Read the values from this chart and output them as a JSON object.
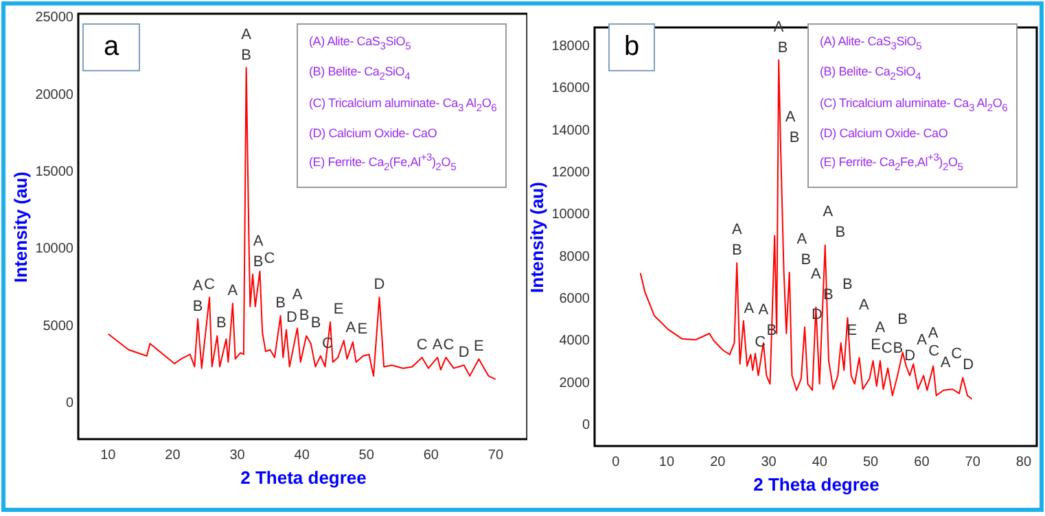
{
  "chart_data": [
    {
      "type": "line",
      "xlabel": "2 Theta degree",
      "ylabel": "Intensity (au)",
      "xlim": [
        5.5,
        75
      ],
      "ylim": [
        -2400,
        25200
      ],
      "xticks": [
        10,
        20,
        30,
        40,
        50,
        60,
        70
      ],
      "yticks": [
        0,
        5000,
        10000,
        15000,
        20000,
        25000
      ],
      "series": [
        {
          "color": "#ff0000",
          "x": [
            10.2,
            13.3,
            16.1,
            16.6,
            20.4,
            21.4,
            22.8,
            23.5,
            24.0,
            24.6,
            25.8,
            26.2,
            27.0,
            27.4,
            28.4,
            28.7,
            29.4,
            29.8,
            30.6,
            31.1,
            31.5,
            31.9,
            32.1,
            32.5,
            32.9,
            33.6,
            34.0,
            34.5,
            35.2,
            35.9,
            36.8,
            37.2,
            37.7,
            38.2,
            39.4,
            39.9,
            40.8,
            41.5,
            42.2,
            43.0,
            43.7,
            44.5,
            44.9,
            45.7,
            46.6,
            47.1,
            48.0,
            48.5,
            49.6,
            50.5,
            51.2,
            52.1,
            52.8,
            54.0,
            55.8,
            57.2,
            58.7,
            59.7,
            61.1,
            61.6,
            62.4,
            63.6,
            65.2,
            66.1,
            67.5,
            69.0,
            70.0
          ],
          "values": [
            4400,
            3400,
            3000,
            3800,
            2500,
            2800,
            3100,
            2300,
            5400,
            2200,
            6800,
            2300,
            4300,
            2300,
            4100,
            2600,
            6400,
            2800,
            3200,
            3100,
            21700,
            10700,
            6200,
            8300,
            6200,
            8500,
            4500,
            3300,
            3400,
            2900,
            5600,
            2900,
            4700,
            2300,
            4800,
            2600,
            4300,
            3800,
            2300,
            3000,
            2300,
            5200,
            2600,
            2900,
            4000,
            2800,
            3900,
            2600,
            3000,
            3100,
            1700,
            6800,
            2300,
            2400,
            2200,
            2300,
            2900,
            2200,
            2900,
            2100,
            2900,
            2200,
            2400,
            1700,
            2800,
            1700,
            1500
          ]
        }
      ],
      "annotations": [
        "a",
        "(A) Alite- CaS$_{3}$SiO$_{5}$",
        "(B) Belite- Ca$_{2}$SiO$_{4}$",
        "(C) Tricalcium aluminate- Ca$_{3}$ Al$_{2}$O$_{6}$",
        "(D) Calcium Oxide- CaO",
        "(E) Ferrite- Ca$_{2}$(Fe,Al$^{+3}$)$_{2}$O$_{5}$",
        {
          "text": "A",
          "x": 31.5,
          "y": 21700
        },
        {
          "text": "B",
          "x": 31.5,
          "y": 21700
        },
        {
          "text": "A",
          "x": 32.5,
          "y": 8300
        },
        {
          "text": "B",
          "x": 32.5,
          "y": 8300
        },
        {
          "text": "C",
          "x": 33.6,
          "y": 8500
        },
        {
          "text": "A",
          "x": 24.0,
          "y": 5400
        },
        {
          "text": "B",
          "x": 24.0,
          "y": 5400
        },
        {
          "text": "C",
          "x": 25.8,
          "y": 6800
        },
        {
          "text": "B",
          "x": 27.0,
          "y": 4300
        },
        {
          "text": "A",
          "x": 29.4,
          "y": 6400
        },
        {
          "text": "B",
          "x": 36.8,
          "y": 5600
        },
        {
          "text": "D",
          "x": 37.7,
          "y": 4700
        },
        {
          "text": "A",
          "x": 39.4,
          "y": 4800
        },
        {
          "text": "B",
          "x": 39.4,
          "y": 4800
        },
        {
          "text": "B",
          "x": 40.8,
          "y": 4300
        },
        {
          "text": "C",
          "x": 43.0,
          "y": 3000
        },
        {
          "text": "E",
          "x": 44.5,
          "y": 5200
        },
        {
          "text": "A",
          "x": 46.6,
          "y": 4000
        },
        {
          "text": "E",
          "x": 48.0,
          "y": 3900
        },
        {
          "text": "D",
          "x": 52.1,
          "y": 6800
        },
        {
          "text": "C",
          "x": 58.7,
          "y": 2900
        },
        {
          "text": "A",
          "x": 61.1,
          "y": 2900
        },
        {
          "text": "C",
          "x": 62.4,
          "y": 2900
        },
        {
          "text": "D",
          "x": 65.2,
          "y": 2400
        },
        {
          "text": "E",
          "x": 67.5,
          "y": 2800
        }
      ]
    },
    {
      "type": "line",
      "xlabel": "2 Theta degree",
      "ylabel": "Intensity (au)",
      "xlim": [
        -4,
        82.7
      ],
      "ylim": [
        -1050,
        18850
      ],
      "xticks": [
        0,
        10,
        20,
        30,
        40,
        50,
        60,
        70,
        80
      ],
      "yticks": [
        0,
        2000,
        4000,
        6000,
        8000,
        10000,
        12000,
        14000,
        16000,
        18000
      ],
      "series": [
        {
          "color": "#ff0000",
          "x": [
            5.0,
            5.9,
            7.7,
            10.4,
            13.1,
            15.8,
            18.5,
            19.4,
            21.2,
            22.5,
            23.4,
            23.9,
            24.5,
            25.2,
            25.9,
            26.6,
            27.0,
            27.5,
            28.1,
            29.1,
            29.7,
            30.4,
            31.3,
            31.7,
            32.1,
            32.5,
            33.1,
            33.6,
            34.2,
            34.7,
            35.6,
            36.5,
            37.2,
            37.8,
            38.7,
            39.4,
            40.1,
            41.2,
            41.9,
            42.8,
            43.7,
            44.3,
            44.9,
            45.6,
            46.3,
            47.0,
            47.9,
            48.6,
            49.9,
            50.6,
            51.3,
            52.0,
            52.6,
            53.5,
            54.4,
            55.3,
            56.4,
            57.1,
            57.8,
            58.5,
            59.4,
            60.5,
            61.2,
            62.4,
            63.0,
            64.4,
            66.2,
            67.5,
            68.2,
            69.1,
            69.9
          ],
          "values": [
            7150,
            6250,
            5150,
            4500,
            4050,
            4000,
            4300,
            3950,
            3500,
            3300,
            3850,
            7650,
            2850,
            4900,
            2750,
            3300,
            2550,
            3350,
            2300,
            3850,
            2300,
            1900,
            8950,
            4300,
            17300,
            13000,
            7300,
            4300,
            7200,
            2300,
            1600,
            2150,
            4600,
            1900,
            1600,
            5550,
            1900,
            8500,
            3000,
            1650,
            2300,
            3850,
            2550,
            5050,
            2300,
            1900,
            3150,
            1650,
            2150,
            3000,
            1800,
            3000,
            1650,
            2650,
            1350,
            2200,
            3400,
            2750,
            2300,
            2850,
            1650,
            2300,
            1600,
            2750,
            1350,
            1600,
            1650,
            1450,
            2200,
            1350,
            1200
          ]
        }
      ],
      "annotations": [
        "b",
        "(A) Alite- CaS$_{3}$SiO$_{5}$",
        "(B) Belite- Ca$_{2}$SiO$_{4}$",
        "(C) Tricalcium aluminate- Ca$_{3}$ Al$_{2}$O$_{6}$",
        "(D) Calcium Oxide- CaO",
        "(E)  Ferrite- Ca$_{2}$Fe,Al$^{+3}$)$_{2}$O$_{5}$",
        {
          "text": "A",
          "x": 32.1,
          "y": 17300
        },
        {
          "text": "B",
          "x": 32.1,
          "y": 17300
        },
        {
          "text": "A",
          "x": 32.5,
          "y": 13000
        },
        {
          "text": "B",
          "x": 32.5,
          "y": 13000
        },
        {
          "text": "A",
          "x": 23.9,
          "y": 7650
        },
        {
          "text": "B",
          "x": 23.9,
          "y": 7650
        },
        {
          "text": "A",
          "x": 34.2,
          "y": 7200
        },
        {
          "text": "B",
          "x": 34.2,
          "y": 7200
        },
        {
          "text": "A",
          "x": 41.2,
          "y": 8500
        },
        {
          "text": "B",
          "x": 41.2,
          "y": 8500
        },
        {
          "text": "A",
          "x": 25.2,
          "y": 4900
        },
        {
          "text": "C",
          "x": 26.6,
          "y": 3300
        },
        {
          "text": "A",
          "x": 29.1,
          "y": 3850
        },
        {
          "text": "B",
          "x": 29.1,
          "y": 3850
        },
        {
          "text": "D",
          "x": 37.2,
          "y": 4600
        },
        {
          "text": "A",
          "x": 39.4,
          "y": 5550
        },
        {
          "text": "B",
          "x": 39.4,
          "y": 5550
        },
        {
          "text": "B",
          "x": 45.6,
          "y": 5050
        },
        {
          "text": "A",
          "x": 45.6,
          "y": 5050
        },
        {
          "text": "E",
          "x": 44.3,
          "y": 3850
        },
        {
          "text": "E",
          "x": 47.9,
          "y": 3150
        },
        {
          "text": "C",
          "x": 50.6,
          "y": 3000
        },
        {
          "text": "A",
          "x": 52.0,
          "y": 3000
        },
        {
          "text": "B",
          "x": 52.0,
          "y": 3000
        },
        {
          "text": "D",
          "x": 53.5,
          "y": 2650
        },
        {
          "text": "B",
          "x": 56.4,
          "y": 3400
        },
        {
          "text": "A",
          "x": 56.4,
          "y": 3400
        },
        {
          "text": "C",
          "x": 58.5,
          "y": 2850
        },
        {
          "text": "A",
          "x": 60.5,
          "y": 2300
        },
        {
          "text": "A",
          "x": 62.4,
          "y": 2750
        },
        {
          "text": "C",
          "x": 62.4,
          "y": 2750
        },
        {
          "text": "D",
          "x": 68.2,
          "y": 2200
        }
      ]
    }
  ]
}
